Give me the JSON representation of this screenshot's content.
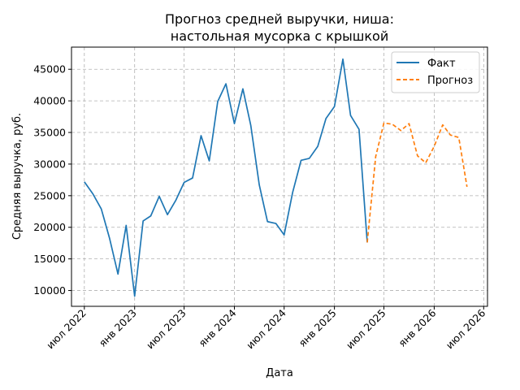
{
  "chart_data": {
    "type": "line",
    "title": [
      "Прогноз средней выручки, ниша:",
      "настольная мусорка с крышкой"
    ],
    "xlabel": "Дата",
    "ylabel": "Средняя выручка, руб.",
    "ylim": [
      7500,
      48500
    ],
    "xlim": [
      "2022-05-15",
      "2026-07-15"
    ],
    "yticks": [
      10000,
      15000,
      20000,
      25000,
      30000,
      35000,
      40000,
      45000
    ],
    "xticks": [
      {
        "date": "2022-07-01",
        "label": "июл 2022"
      },
      {
        "date": "2023-01-01",
        "label": "янв 2023"
      },
      {
        "date": "2023-07-01",
        "label": "июл 2023"
      },
      {
        "date": "2024-01-01",
        "label": "янв 2024"
      },
      {
        "date": "2024-07-01",
        "label": "июл 2024"
      },
      {
        "date": "2025-01-01",
        "label": "янв 2025"
      },
      {
        "date": "2025-07-01",
        "label": "июл 2025"
      },
      {
        "date": "2026-01-01",
        "label": "янв 2026"
      },
      {
        "date": "2026-07-01",
        "label": "июл 2026"
      }
    ],
    "grid": true,
    "legend_position": "top-right",
    "series": [
      {
        "name": "Факт",
        "color": "#1f77b4",
        "style": "solid",
        "points": [
          [
            "2022-07-01",
            27200
          ],
          [
            "2022-08-01",
            25300
          ],
          [
            "2022-09-01",
            22900
          ],
          [
            "2022-10-01",
            18300
          ],
          [
            "2022-11-01",
            12600
          ],
          [
            "2022-12-01",
            20300
          ],
          [
            "2023-01-01",
            9100
          ],
          [
            "2023-02-01",
            21000
          ],
          [
            "2023-03-01",
            21800
          ],
          [
            "2023-04-01",
            24900
          ],
          [
            "2023-05-01",
            22000
          ],
          [
            "2023-06-01",
            24300
          ],
          [
            "2023-07-01",
            27100
          ],
          [
            "2023-08-01",
            27800
          ],
          [
            "2023-09-01",
            34500
          ],
          [
            "2023-10-01",
            30500
          ],
          [
            "2023-11-01",
            39900
          ],
          [
            "2023-12-01",
            42700
          ],
          [
            "2024-01-01",
            36400
          ],
          [
            "2024-02-01",
            41900
          ],
          [
            "2024-03-01",
            36100
          ],
          [
            "2024-04-01",
            26700
          ],
          [
            "2024-05-01",
            20900
          ],
          [
            "2024-06-01",
            20600
          ],
          [
            "2024-07-01",
            18800
          ],
          [
            "2024-08-01",
            25500
          ],
          [
            "2024-09-01",
            30600
          ],
          [
            "2024-10-01",
            30900
          ],
          [
            "2024-11-01",
            32800
          ],
          [
            "2024-12-01",
            37200
          ],
          [
            "2025-01-01",
            39100
          ],
          [
            "2025-02-01",
            46600
          ],
          [
            "2025-03-01",
            37700
          ],
          [
            "2025-04-01",
            35500
          ],
          [
            "2025-05-01",
            17600
          ]
        ]
      },
      {
        "name": "Прогноз",
        "color": "#ff7f0e",
        "style": "dashed",
        "points": [
          [
            "2025-05-01",
            17600
          ],
          [
            "2025-06-01",
            31200
          ],
          [
            "2025-07-01",
            36500
          ],
          [
            "2025-08-01",
            36300
          ],
          [
            "2025-09-01",
            35300
          ],
          [
            "2025-10-01",
            36400
          ],
          [
            "2025-11-01",
            31300
          ],
          [
            "2025-12-01",
            30200
          ],
          [
            "2026-01-01",
            32800
          ],
          [
            "2026-02-01",
            36200
          ],
          [
            "2026-03-01",
            34600
          ],
          [
            "2026-04-01",
            34200
          ],
          [
            "2026-05-01",
            26400
          ]
        ]
      }
    ]
  }
}
